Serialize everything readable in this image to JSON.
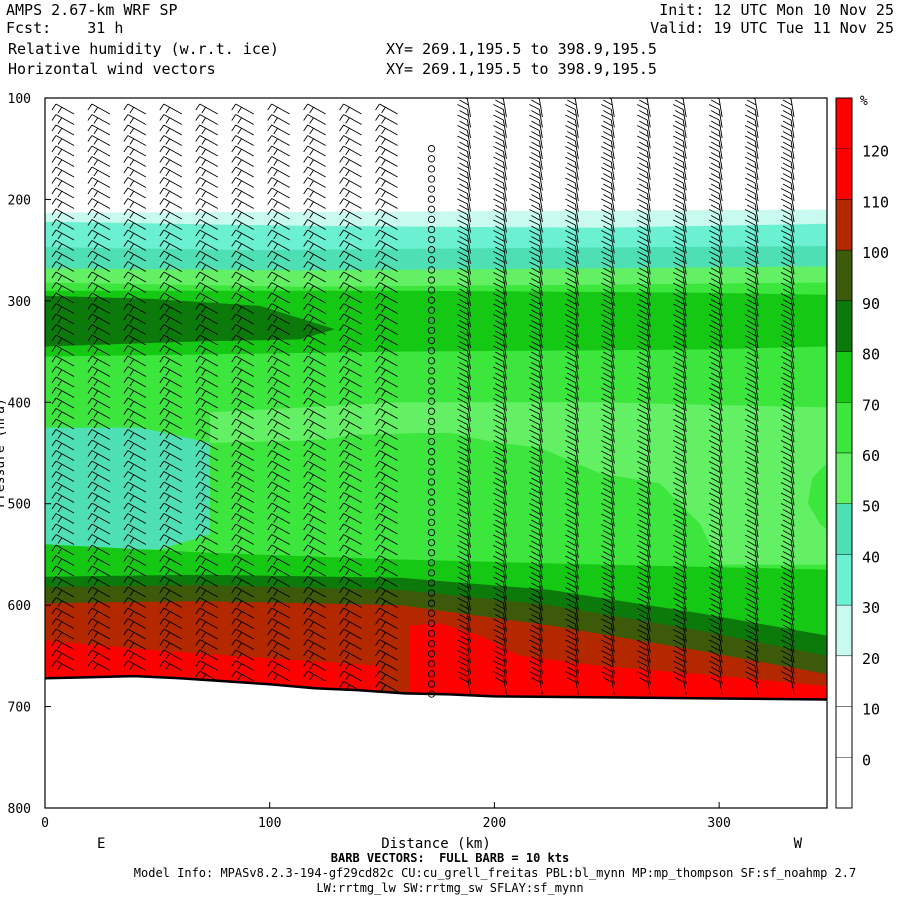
{
  "header": {
    "model_title": "AMPS 2.67-km WRF SP",
    "forecast": "Fcst:    31 h",
    "field_1": "Relative humidity (w.r.t. ice)",
    "field_2": "Horizontal wind vectors",
    "init": "Init: 12 UTC Mon 10 Nov 25",
    "valid": "Valid: 19 UTC Tue 11 Nov 25",
    "xy_1": "XY= 269.1,195.5 to 398.9,195.5",
    "xy_2": "XY= 269.1,195.5 to 398.9,195.5"
  },
  "footer": {
    "barb_note": "BARB VECTORS:  FULL BARB = 10 kts",
    "model_info": "Model Info: MPASv8.2.3-194-gf29cd82c CU:cu_grell_freitas PBL:bl_mynn MP:mp_thompson SF:sf_noahmp 2.7",
    "model_info_2": "LW:rrtmg_lw SW:rrtmg_sw SFLAY:sf_mynn"
  },
  "chart_data": {
    "type": "heatmap",
    "title": "Relative humidity (w.r.t. ice) cross-section with horizontal wind barbs",
    "xlabel": "Distance (km)",
    "ylabel": "Pressure (hPa)",
    "xlim": [
      0,
      348
    ],
    "ylim": [
      800,
      100
    ],
    "x_ticks": [
      0,
      100,
      200,
      300
    ],
    "y_ticks": [
      100,
      200,
      300,
      400,
      500,
      600,
      700,
      800
    ],
    "left_end_label": "E",
    "right_end_label": "W",
    "colorbar": {
      "unit": "%",
      "tick_labels": [
        0,
        10,
        20,
        30,
        40,
        50,
        60,
        70,
        80,
        90,
        100,
        110,
        120
      ],
      "bins": [
        {
          "range": "<10",
          "color": "#ffffff"
        },
        {
          "range": "10-20",
          "color": "#ffffff"
        },
        {
          "range": "20-30",
          "color": "#ffffff"
        },
        {
          "range": "30-40",
          "color": "#c8faef"
        },
        {
          "range": "40-50",
          "color": "#6bf0d2"
        },
        {
          "range": "50-60",
          "color": "#4ee0b4"
        },
        {
          "range": "60-70",
          "color": "#64f064"
        },
        {
          "range": "70-80",
          "color": "#3ce63c"
        },
        {
          "range": "80-90",
          "color": "#14c814"
        },
        {
          "range": "90-100",
          "color": "#0b7a0b"
        },
        {
          "range": "100-110",
          "color": "#3c5a0a"
        },
        {
          "range": "110-120",
          "color": "#b42800"
        },
        {
          "range": ">120",
          "color": "#ff0000"
        }
      ]
    },
    "terrain_pressure_profile": {
      "x_km": [
        0,
        20,
        40,
        60,
        80,
        100,
        120,
        140,
        160,
        180,
        200,
        250,
        300,
        348
      ],
      "pressure_hpa": [
        672,
        671,
        670,
        672,
        675,
        678,
        682,
        684,
        687,
        688,
        690,
        691,
        692,
        693
      ]
    },
    "rh_layers_by_pressure_hpa": [
      {
        "rh_range": "<20",
        "pressure_top": 100,
        "pressure_bottom": 213
      },
      {
        "rh_range": "30-50",
        "pressure_top": 213,
        "pressure_bottom": 272
      },
      {
        "rh_range": "60-80",
        "pressure_top": 272,
        "pressure_bottom": 568
      },
      {
        "rh_range": "90-100",
        "pressure_top": 295,
        "pressure_bottom": 345
      },
      {
        "rh_range": "90-110",
        "pressure_top": 575,
        "pressure_bottom": 600
      },
      {
        "rh_range": ">110",
        "pressure_top": 600,
        "pressure_bottom": 690
      }
    ],
    "wind_barbs": {
      "units": "kts",
      "full_barb_kts": 10,
      "calm_column_km": 172,
      "column_spacing_km": 16
    }
  }
}
